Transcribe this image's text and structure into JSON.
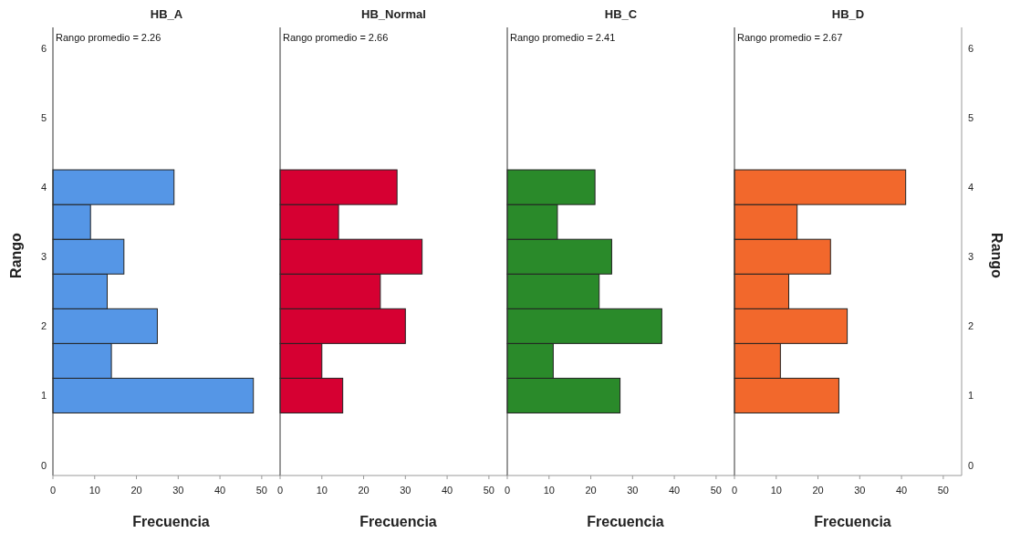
{
  "chart_data": [
    {
      "type": "histogram",
      "orientation": "horizontal",
      "title": "HB_A",
      "xlabel": "Frecuencia",
      "ylabel": "Rango",
      "color": "#5596e6",
      "bins": [
        0.75,
        1.25,
        1.75,
        2.25,
        2.75,
        3.25,
        3.75,
        4.25
      ],
      "values": [
        48,
        14,
        25,
        13,
        17,
        9,
        29
      ],
      "xlim": [
        0,
        54.4
      ],
      "xticks": [
        0,
        10,
        20,
        30,
        40,
        50
      ],
      "ylim": [
        -0.15,
        6.3
      ],
      "yticks": [
        0,
        1,
        2,
        3,
        4,
        5,
        6
      ],
      "annotations": [
        "Rango promedio = 2.26"
      ]
    },
    {
      "type": "histogram",
      "orientation": "horizontal",
      "title": "HB_Normal",
      "xlabel": "Frecuencia",
      "color": "#d60032",
      "bins": [
        0.75,
        1.25,
        1.75,
        2.25,
        2.75,
        3.25,
        3.75,
        4.25
      ],
      "values": [
        15,
        10,
        30,
        24,
        34,
        14,
        28
      ],
      "xlim": [
        0,
        54.4
      ],
      "xticks": [
        0,
        10,
        20,
        30,
        40,
        50
      ],
      "ylim": [
        -0.15,
        6.3
      ],
      "tick_labels": "x",
      "annotations": [
        "Rango promedio = 2.66"
      ]
    },
    {
      "type": "histogram",
      "orientation": "horizontal",
      "title": "HB_C",
      "xlabel": "Frecuencia",
      "color": "#2a8a2a",
      "bins": [
        0.75,
        1.25,
        1.75,
        2.25,
        2.75,
        3.25,
        3.75,
        4.25
      ],
      "values": [
        27,
        11,
        37,
        22,
        25,
        12,
        21
      ],
      "xlim": [
        0,
        54.4
      ],
      "xticks": [
        0,
        10,
        20,
        30,
        40,
        50
      ],
      "ylim": [
        -0.15,
        6.3
      ],
      "tick_labels": "x",
      "annotations": [
        "Rango promedio = 2.41"
      ]
    },
    {
      "type": "histogram",
      "orientation": "horizontal",
      "title": "HB_D",
      "xlabel": "Frecuencia",
      "ylabel": "Rango",
      "color": "#f2682c",
      "bins": [
        0.75,
        1.25,
        1.75,
        2.25,
        2.75,
        3.25,
        3.75,
        4.25
      ],
      "values": [
        25,
        11,
        27,
        13,
        23,
        15,
        41
      ],
      "xlim": [
        0,
        54.4
      ],
      "xticks": [
        0,
        10,
        20,
        30,
        40,
        50
      ],
      "ylim": [
        -0.15,
        6.3
      ],
      "yticks": [
        0,
        1,
        2,
        3,
        4,
        5,
        6
      ],
      "annotations": [
        "Rango promedio = 2.67"
      ]
    }
  ]
}
